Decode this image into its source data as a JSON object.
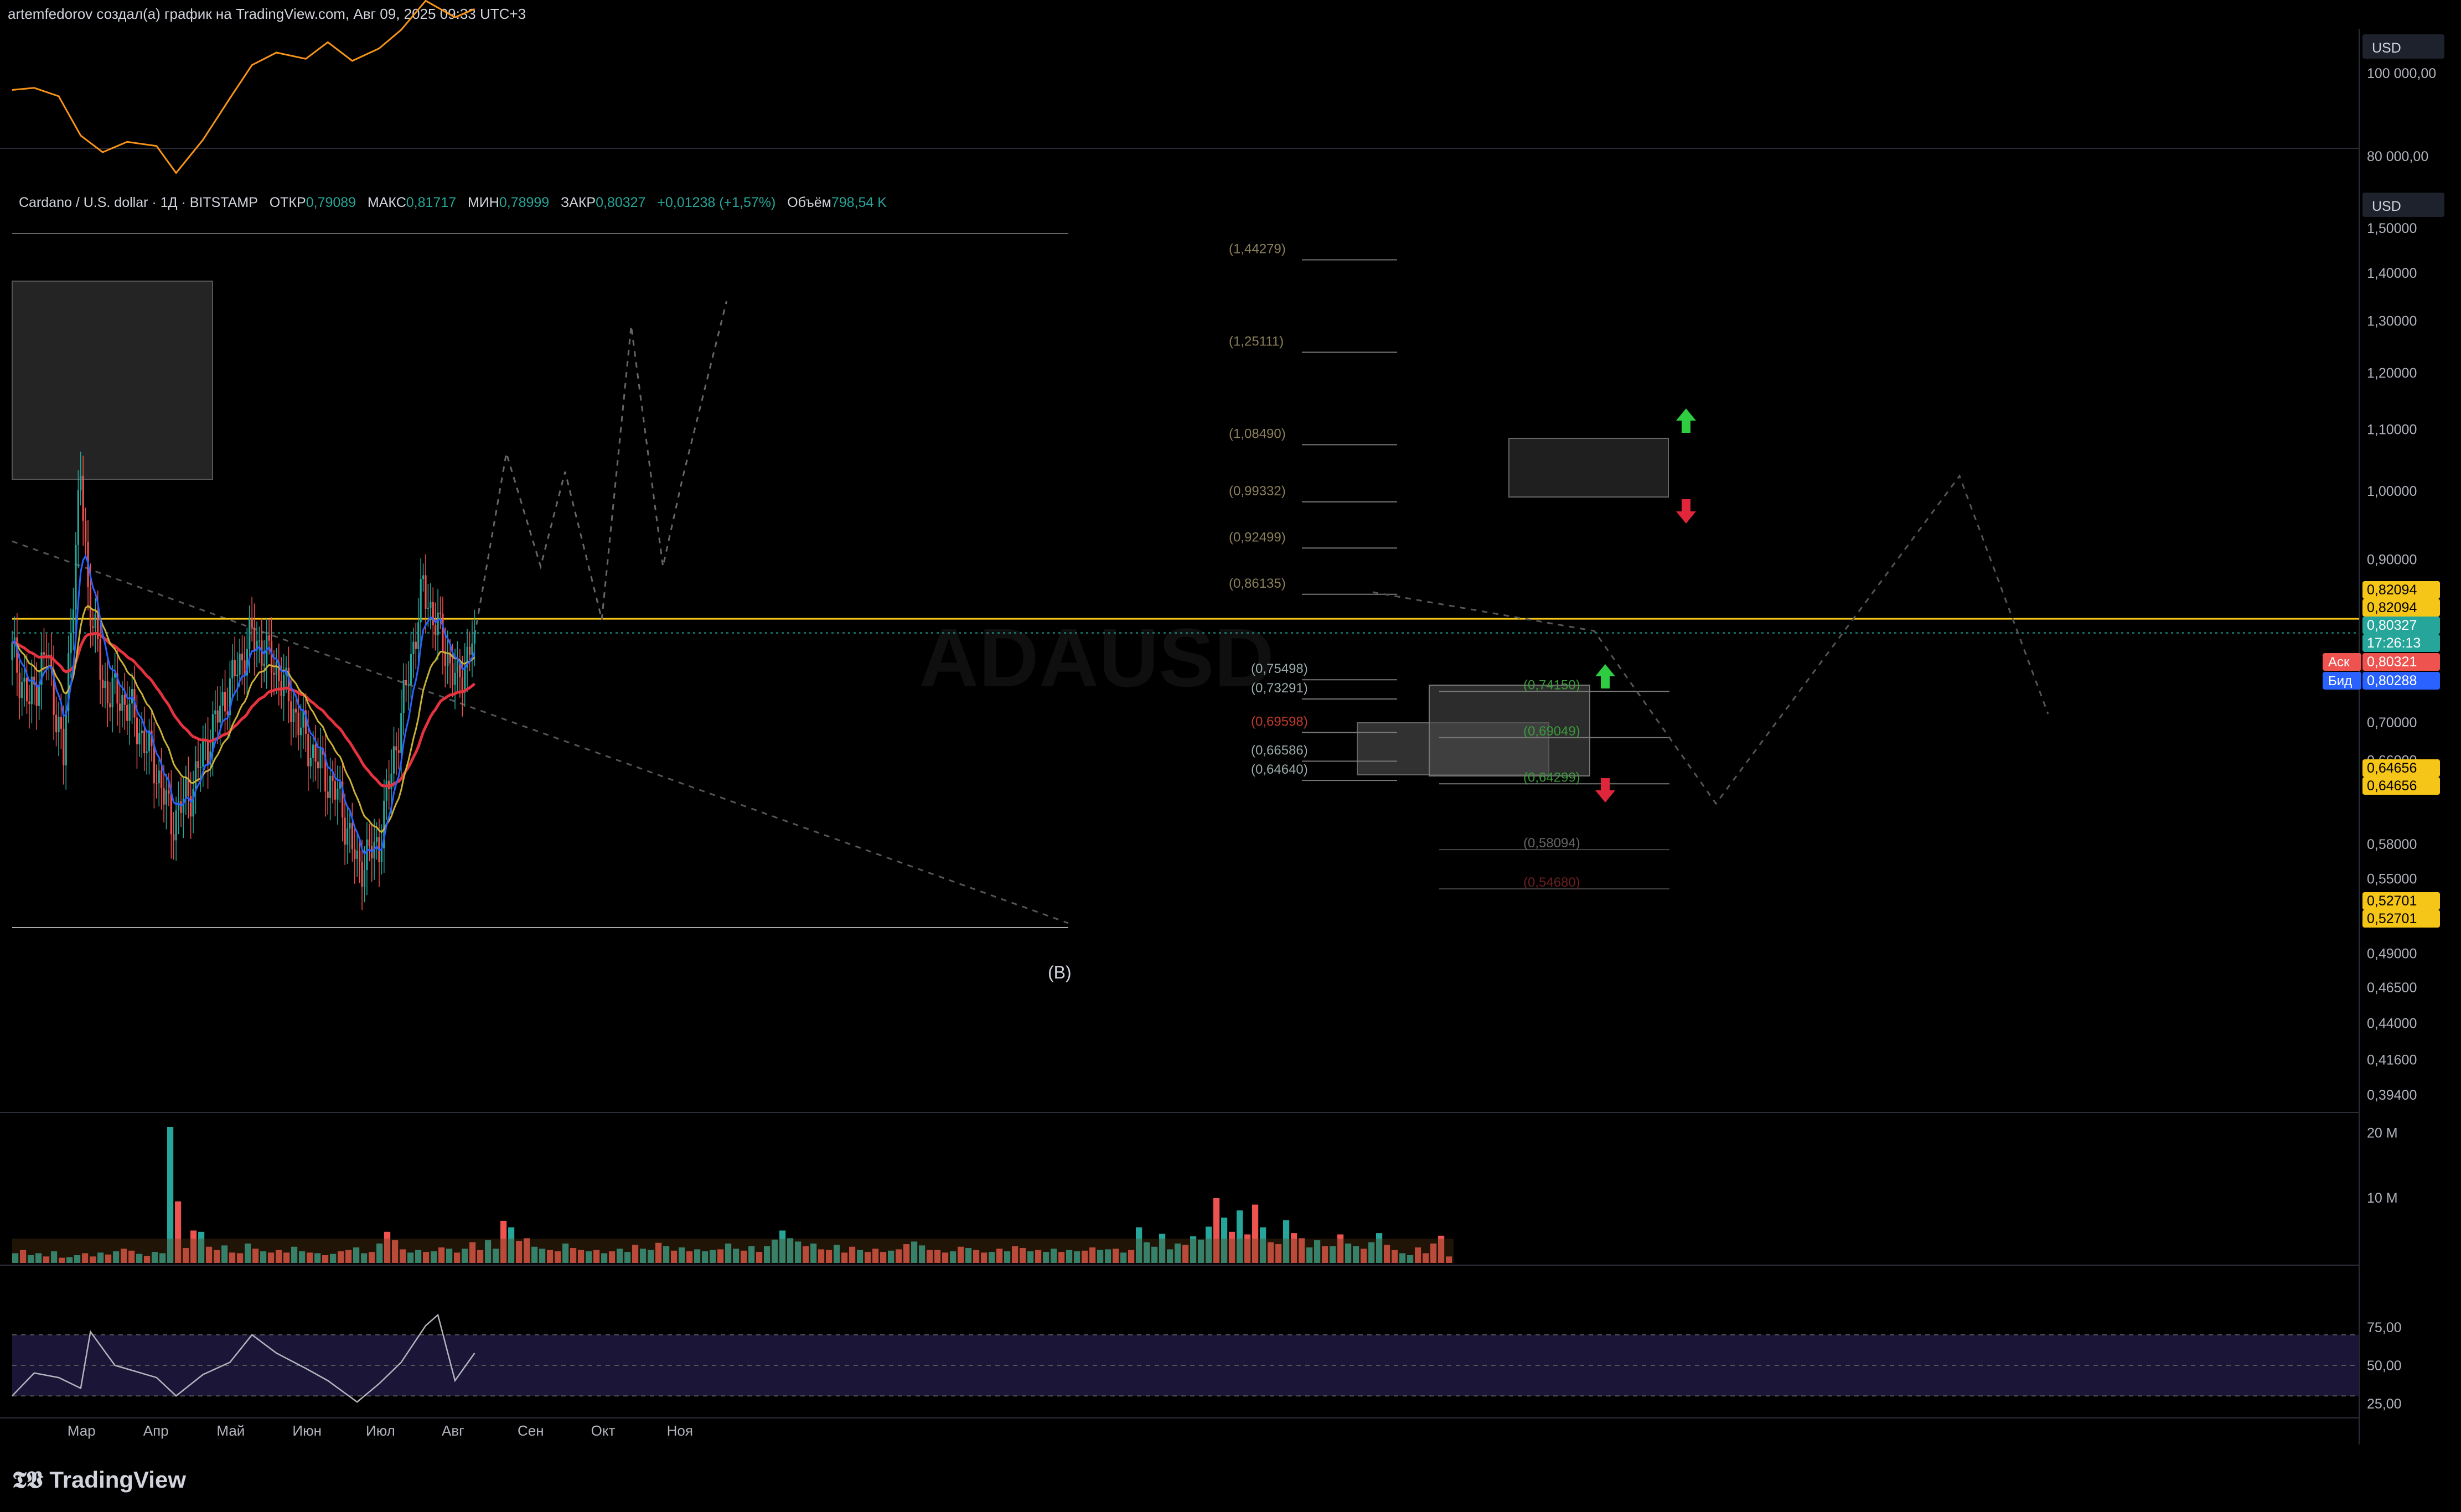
{
  "header": {
    "title": "artemfedorov создал(а) график на TradingView.com, Авг 09, 2025 09:33 UTC+3"
  },
  "legend": {
    "symbol": "Cardano / U.S. dollar · 1Д · BITSTAMP",
    "open_label": "ОТКР",
    "open": "0,79089",
    "high_label": "МАКС",
    "high": "0,81717",
    "low_label": "МИН",
    "low": "0,78999",
    "close_label": "ЗАКР",
    "close": "0,80327",
    "change": "+0,01238 (+1,57%)",
    "volume_label": "Объём",
    "volume": "798,54 K"
  },
  "watermark": "ADAUSD",
  "wave_label": "(B)",
  "logo": "TradingView",
  "colors": {
    "up": "#26a69a",
    "down": "#ef5350",
    "ema_red": "#e5323e",
    "ema_yellow": "#c9b037",
    "ema_blue": "#2962ff",
    "btc": "#f7931a",
    "gold": "#f5c518",
    "ask": "#ef5350",
    "bid": "#2962ff"
  },
  "chart_data": [
    {
      "type": "line",
      "pane": "btc_overlay",
      "currency": "USD",
      "y_ticks": [
        "100 000,00",
        "80 000,00"
      ],
      "y_tick_values": [
        100000,
        80000
      ],
      "x": [
        "2025-02-01",
        "2025-02-10",
        "2025-02-20",
        "2025-03-01",
        "2025-03-10",
        "2025-03-20",
        "2025-04-01",
        "2025-04-09",
        "2025-04-20",
        "2025-05-01",
        "2025-05-10",
        "2025-05-20",
        "2025-06-01",
        "2025-06-10",
        "2025-06-20",
        "2025-07-01",
        "2025-07-10",
        "2025-07-20",
        "2025-08-01",
        "2025-08-09"
      ],
      "values": [
        97000,
        97500,
        95500,
        86000,
        82000,
        84500,
        83500,
        77000,
        85000,
        95000,
        103000,
        106000,
        104500,
        108500,
        104000,
        107000,
        111500,
        118500,
        114500,
        116500
      ]
    },
    {
      "type": "candlestick",
      "pane": "price",
      "currency": "USD",
      "x_labels": [
        "Мар",
        "Апр",
        "Май",
        "Июн",
        "Июл",
        "Авг",
        "Сен",
        "Окт",
        "Ноя"
      ],
      "x_label_dates": [
        "2025-03-01",
        "2025-04-01",
        "2025-05-01",
        "2025-06-01",
        "2025-07-01",
        "2025-08-01",
        "2025-09-01",
        "2025-10-01",
        "2025-11-01"
      ],
      "y_ticks": [
        "1,50000",
        "1,40000",
        "1,30000",
        "1,20000",
        "1,10000",
        "1,00000",
        "0,90000",
        "0,70000",
        "0,66000",
        "0,58000",
        "0,55000",
        "0,49000",
        "0,46500",
        "0,44000",
        "0,41600",
        "0,39400"
      ],
      "y_tick_values": [
        1.5,
        1.4,
        1.3,
        1.2,
        1.1,
        1.0,
        0.9,
        0.7,
        0.66,
        0.58,
        0.55,
        0.49,
        0.465,
        0.44,
        0.416,
        0.394
      ],
      "scale": "log",
      "price_labels": [
        {
          "text": "0,82094",
          "color": "gold"
        },
        {
          "text": "0,82094",
          "color": "gold"
        },
        {
          "text": "0,80327",
          "color": "up"
        },
        {
          "text": "17:26:13",
          "color": "up"
        },
        {
          "text": "0,80321",
          "color": "ask",
          "tag": "Аск"
        },
        {
          "text": "0,80288",
          "color": "bid",
          "tag": "Бид"
        },
        {
          "text": "0,64656",
          "color": "gold"
        },
        {
          "text": "0,64656",
          "color": "gold"
        },
        {
          "text": "0,52701",
          "color": "gold"
        },
        {
          "text": "0,52701",
          "color": "gold"
        }
      ],
      "fib_levels": [
        {
          "text": "(1,44279)",
          "value": 1.44279
        },
        {
          "text": "(1,25111)",
          "value": 1.25111
        },
        {
          "text": "(1,08490)",
          "value": 1.0849
        },
        {
          "text": "(0,99332)",
          "value": 0.99332
        },
        {
          "text": "(0,92499)",
          "value": 0.92499
        },
        {
          "text": "(0,86135)",
          "value": 0.86135
        },
        {
          "text": "(0,75498)",
          "value": 0.75498
        },
        {
          "text": "(0,73291)",
          "value": 0.73291
        },
        {
          "text": "(0,69598)",
          "value": 0.69598
        },
        {
          "text": "(0,66586)",
          "value": 0.66586
        },
        {
          "text": "(0,64640)",
          "value": 0.6464
        }
      ],
      "fib_levels_right": [
        {
          "text": "(0,74150)",
          "value": 0.7415
        },
        {
          "text": "(0,69049)",
          "value": 0.69049
        },
        {
          "text": "(0,64299)",
          "value": 0.64299
        },
        {
          "text": "(0,58094)",
          "value": 0.58094
        },
        {
          "text": "(0,54680)",
          "value": 0.5468
        }
      ],
      "horizontal_lines": [
        0.82094,
        0.80327,
        0.52701
      ],
      "ohlc_samples": [
        {
          "d": "2025-02-01",
          "o": 0.77,
          "h": 0.82,
          "l": 0.68,
          "c": 0.78
        },
        {
          "d": "2025-02-08",
          "o": 0.78,
          "h": 0.8,
          "l": 0.68,
          "c": 0.72
        },
        {
          "d": "2025-02-15",
          "o": 0.72,
          "h": 0.8,
          "l": 0.7,
          "c": 0.78
        },
        {
          "d": "2025-02-22",
          "o": 0.78,
          "h": 0.8,
          "l": 0.64,
          "c": 0.66
        },
        {
          "d": "2025-03-01",
          "o": 0.66,
          "h": 1.17,
          "l": 0.62,
          "c": 1.02
        },
        {
          "d": "2025-03-04",
          "o": 1.02,
          "h": 1.08,
          "l": 0.8,
          "c": 0.86
        },
        {
          "d": "2025-03-10",
          "o": 0.86,
          "h": 0.88,
          "l": 0.68,
          "c": 0.74
        },
        {
          "d": "2025-03-20",
          "o": 0.74,
          "h": 0.76,
          "l": 0.69,
          "c": 0.72
        },
        {
          "d": "2025-04-01",
          "o": 0.72,
          "h": 0.73,
          "l": 0.63,
          "c": 0.65
        },
        {
          "d": "2025-04-07",
          "o": 0.65,
          "h": 0.66,
          "l": 0.52,
          "c": 0.6
        },
        {
          "d": "2025-04-15",
          "o": 0.6,
          "h": 0.65,
          "l": 0.59,
          "c": 0.63
        },
        {
          "d": "2025-04-25",
          "o": 0.63,
          "h": 0.72,
          "l": 0.62,
          "c": 0.7
        },
        {
          "d": "2025-05-10",
          "o": 0.7,
          "h": 0.85,
          "l": 0.69,
          "c": 0.8
        },
        {
          "d": "2025-05-20",
          "o": 0.8,
          "h": 0.83,
          "l": 0.73,
          "c": 0.76
        },
        {
          "d": "2025-06-01",
          "o": 0.76,
          "h": 0.76,
          "l": 0.66,
          "c": 0.68
        },
        {
          "d": "2025-06-15",
          "o": 0.68,
          "h": 0.69,
          "l": 0.6,
          "c": 0.62
        },
        {
          "d": "2025-06-22",
          "o": 0.62,
          "h": 0.63,
          "l": 0.527,
          "c": 0.56
        },
        {
          "d": "2025-07-01",
          "o": 0.56,
          "h": 0.6,
          "l": 0.54,
          "c": 0.58
        },
        {
          "d": "2025-07-11",
          "o": 0.58,
          "h": 0.75,
          "l": 0.58,
          "c": 0.72
        },
        {
          "d": "2025-07-19",
          "o": 0.72,
          "h": 0.93,
          "l": 0.71,
          "c": 0.86
        },
        {
          "d": "2025-07-26",
          "o": 0.86,
          "h": 0.88,
          "l": 0.78,
          "c": 0.8
        },
        {
          "d": "2025-08-02",
          "o": 0.8,
          "h": 0.8,
          "l": 0.69,
          "c": 0.74
        },
        {
          "d": "2025-08-09",
          "o": 0.79089,
          "h": 0.81717,
          "l": 0.78999,
          "c": 0.80327
        }
      ],
      "projection_path": [
        {
          "d": "2025-08-09",
          "v": 0.8
        },
        {
          "d": "2025-08-22",
          "v": 1.06
        },
        {
          "d": "2025-09-05",
          "v": 0.89
        },
        {
          "d": "2025-09-15",
          "v": 1.03
        },
        {
          "d": "2025-09-30",
          "v": 0.82
        },
        {
          "d": "2025-10-12",
          "v": 1.29
        },
        {
          "d": "2025-10-25",
          "v": 0.89
        },
        {
          "d": "2025-11-02",
          "v": 1.02
        },
        {
          "d": "2025-11-20",
          "v": 1.34
        }
      ]
    },
    {
      "type": "bar",
      "pane": "volume",
      "y_ticks": [
        "20 M",
        "10 M"
      ],
      "y_tick_values": [
        20000000,
        10000000
      ],
      "values_millions": [
        1.5,
        2.0,
        1.2,
        1.5,
        1.0,
        1.8,
        0.8,
        0.9,
        1.2,
        1.5,
        1.0,
        1.6,
        1.3,
        1.8,
        2.2,
        1.9,
        1.4,
        1.1,
        1.7,
        1.5,
        21.0,
        9.5,
        2.3,
        5.0,
        4.8,
        2.5,
        2.0,
        2.7,
        1.6,
        1.5,
        3.0,
        2.2,
        1.8,
        1.6,
        2.0,
        1.6,
        2.5,
        1.8,
        1.6,
        1.5,
        1.2,
        1.4,
        1.8,
        2.0,
        2.4,
        1.5,
        1.7,
        3.0,
        4.8,
        3.5,
        2.1,
        1.6,
        2.0,
        1.7,
        1.8,
        2.4,
        2.2,
        1.6,
        2.2,
        3.2,
        2.0,
        3.5,
        2.2,
        6.5,
        5.5,
        3.4,
        3.8,
        2.5,
        2.2,
        2.0,
        1.8,
        3.0,
        2.3,
        2.0,
        1.8,
        2.0,
        1.5,
        1.8,
        2.2,
        1.7,
        2.8,
        2.2,
        2.0,
        3.1,
        2.6,
        1.9,
        2.4,
        1.8,
        2.1,
        1.8,
        2.0,
        2.1,
        3.0,
        2.2,
        1.9,
        2.6,
        1.7,
        2.6,
        3.6,
        5.0,
        3.8,
        3.3,
        2.6,
        3.0,
        2.1,
        2.0,
        2.8,
        1.6,
        2.5,
        2.0,
        1.7,
        2.2,
        1.7,
        1.9,
        2.1,
        2.9,
        3.3,
        2.7,
        2.0,
        2.0,
        1.6,
        1.8,
        2.5,
        2.3,
        2.0,
        1.6,
        1.7,
        2.2,
        1.8,
        2.6,
        2.3,
        1.8,
        2.0,
        1.7,
        2.2,
        1.7,
        2.0,
        1.8,
        1.9,
        2.4,
        2.0,
        2.1,
        2.2,
        1.6,
        2.0,
        5.5,
        3.2,
        2.5,
        4.5,
        2.1,
        3.0,
        2.8,
        4.1,
        3.6,
        5.6,
        10.0,
        7.0,
        4.8,
        8.1,
        4.4,
        9.0,
        5.5,
        3.2,
        2.9,
        6.6,
        4.6,
        3.8,
        2.4,
        3.5,
        2.6,
        2.6,
        4.4,
        3.0,
        2.6,
        2.2,
        3.2,
        4.6,
        2.8,
        2.0,
        1.5,
        1.2,
        2.4,
        1.5,
        3.0,
        4.2,
        1.0
      ],
      "up_flags": [
        1,
        0,
        1,
        1,
        0,
        1,
        0,
        1,
        1,
        0,
        0,
        1,
        0,
        1,
        0,
        0,
        1,
        0,
        1,
        1,
        1,
        0,
        0,
        0,
        1,
        0,
        0,
        1,
        0,
        0,
        1,
        0,
        1,
        0,
        0,
        0,
        1,
        1,
        0,
        1,
        0,
        1,
        0,
        0,
        1,
        1,
        0,
        1,
        0,
        0,
        0,
        1,
        1,
        0,
        1,
        0,
        1,
        0,
        1,
        0,
        0,
        1,
        1,
        0,
        1,
        0,
        0,
        1,
        1,
        0,
        0,
        1,
        0,
        0,
        1,
        0,
        1,
        0,
        1,
        1,
        0,
        1,
        1,
        0,
        1,
        0,
        1,
        0,
        1,
        1,
        1,
        0,
        1,
        1,
        0,
        1,
        0,
        1,
        1,
        1,
        1,
        1,
        0,
        1,
        0,
        0,
        1,
        0,
        0,
        1,
        0,
        0,
        0,
        1,
        0,
        0,
        1,
        1,
        0,
        0,
        0,
        1,
        0,
        1,
        0,
        0,
        1,
        0,
        1,
        0,
        0,
        1,
        0,
        1,
        1,
        0,
        1,
        1,
        0,
        0,
        1,
        1,
        0,
        1,
        0,
        1,
        1,
        1,
        1,
        1,
        1,
        0,
        1,
        1,
        1,
        0,
        1,
        0,
        1,
        0,
        0,
        1,
        0,
        0,
        1,
        0,
        0,
        1,
        1,
        0,
        1,
        0,
        1,
        1,
        0,
        1,
        1,
        0,
        0,
        1,
        1
      ]
    },
    {
      "type": "line",
      "pane": "rsi",
      "y_ticks": [
        "75,00",
        "50,00",
        "25,00"
      ],
      "y_tick_values": [
        75,
        50,
        25
      ],
      "band": [
        30,
        70
      ],
      "x": [
        "2025-02-01",
        "2025-02-10",
        "2025-02-20",
        "2025-03-01",
        "2025-03-05",
        "2025-03-15",
        "2025-04-01",
        "2025-04-09",
        "2025-04-20",
        "2025-05-01",
        "2025-05-10",
        "2025-05-20",
        "2025-06-01",
        "2025-06-10",
        "2025-06-22",
        "2025-07-01",
        "2025-07-10",
        "2025-07-20",
        "2025-07-25",
        "2025-08-01",
        "2025-08-09"
      ],
      "values": [
        30,
        45,
        42,
        35,
        72,
        50,
        42,
        30,
        44,
        52,
        70,
        58,
        48,
        40,
        26,
        38,
        52,
        76,
        83,
        40,
        58
      ]
    }
  ]
}
